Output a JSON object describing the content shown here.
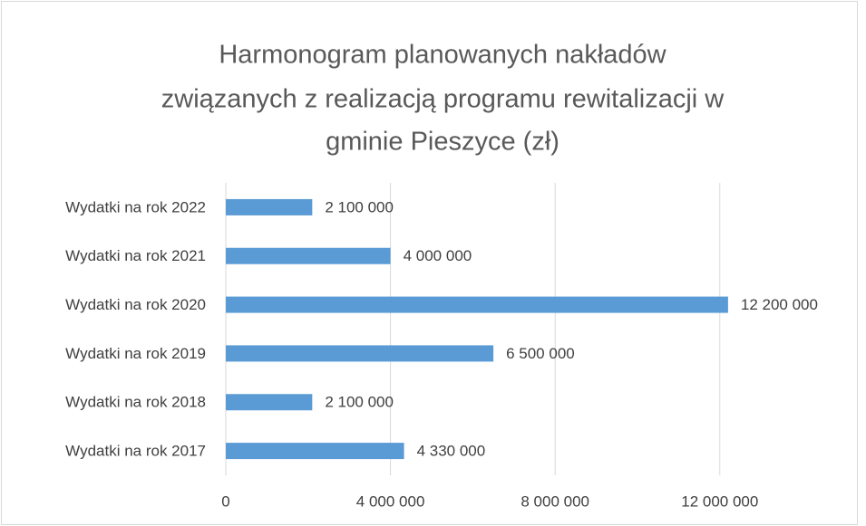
{
  "chart_data": {
    "type": "bar",
    "orientation": "horizontal",
    "title": [
      "Harmonogram planowanych nakładów",
      "związanych z realizacją programu rewitalizacji w",
      "gminie Pieszyce (zł)"
    ],
    "categories": [
      "Wydatki na rok 2017",
      "Wydatki na rok 2018",
      "Wydatki na rok 2019",
      "Wydatki na rok 2020",
      "Wydatki na rok 2021",
      "Wydatki na rok 2022"
    ],
    "values": [
      4330000,
      2100000,
      6500000,
      12200000,
      4000000,
      2100000
    ],
    "value_labels": [
      "4 330 000",
      "2 100 000",
      "6 500 000",
      "12 200 000",
      "4 000 000",
      "2 100 000"
    ],
    "color": "#5b9bd5",
    "xlim": [
      0,
      15000000
    ],
    "xticks": [
      0,
      {
        "value": 4000000,
        "label": "4 000 000"
      },
      {
        "value": 8000000,
        "label": "8 000 000"
      },
      {
        "value": 12000000,
        "label": "12 000 000"
      }
    ],
    "grid": true
  }
}
